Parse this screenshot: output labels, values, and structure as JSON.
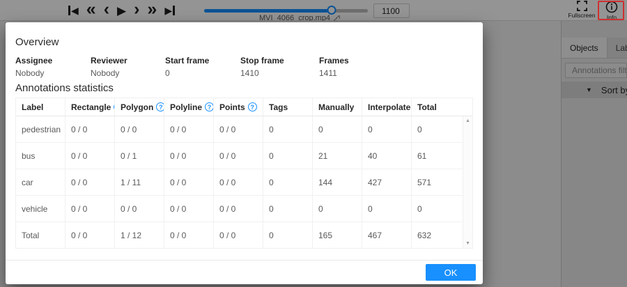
{
  "topbar": {
    "filename": "MVI_4066_crop.mp4",
    "frame_value": "1100",
    "slider_percent": 78,
    "fullscreen_label": "Fullscreen",
    "info_label": "Info"
  },
  "sidebar": {
    "tabs": [
      {
        "label": "Objects",
        "active": true
      },
      {
        "label": "Labels",
        "active": false
      }
    ],
    "filter_placeholder": "Annotations filter",
    "sort_label": "Sort by"
  },
  "modal": {
    "title": "Overview",
    "meta": [
      {
        "label": "Assignee",
        "value": "Nobody"
      },
      {
        "label": "Reviewer",
        "value": "Nobody"
      },
      {
        "label": "Start frame",
        "value": "0"
      },
      {
        "label": "Stop frame",
        "value": "1410"
      },
      {
        "label": "Frames",
        "value": "1411"
      }
    ],
    "stats_title": "Annotations statistics",
    "table": {
      "columns": [
        {
          "label": "Label",
          "help": false
        },
        {
          "label": "Rectangle",
          "help": true
        },
        {
          "label": "Polygon",
          "help": true
        },
        {
          "label": "Polyline",
          "help": true
        },
        {
          "label": "Points",
          "help": true
        },
        {
          "label": "Tags",
          "help": false
        },
        {
          "label": "Manually",
          "help": false
        },
        {
          "label": "Interpolated",
          "help": false
        },
        {
          "label": "Total",
          "help": false
        }
      ],
      "rows": [
        {
          "label": "pedestrian",
          "cells": [
            "0 / 0",
            "0 / 0",
            "0 / 0",
            "0 / 0",
            "0",
            "0",
            "0",
            "0"
          ]
        },
        {
          "label": "bus",
          "cells": [
            "0 / 0",
            "0 / 1",
            "0 / 0",
            "0 / 0",
            "0",
            "21",
            "40",
            "61"
          ]
        },
        {
          "label": "car",
          "cells": [
            "0 / 0",
            "1 / 11",
            "0 / 0",
            "0 / 0",
            "0",
            "144",
            "427",
            "571"
          ]
        },
        {
          "label": "vehicle",
          "cells": [
            "0 / 0",
            "0 / 0",
            "0 / 0",
            "0 / 0",
            "0",
            "0",
            "0",
            "0"
          ]
        },
        {
          "label": "Total",
          "cells": [
            "0 / 0",
            "1 / 12",
            "0 / 0",
            "0 / 0",
            "0",
            "165",
            "467",
            "632"
          ]
        }
      ]
    },
    "ok_label": "OK"
  },
  "icons": {
    "tri_left": "◀",
    "tri_right": "▶",
    "chevrons_left": "«",
    "chevron_left": "‹",
    "play": "▶",
    "chevron_right": "›",
    "chevrons_right": "»",
    "caret_down": "▼",
    "scroll_up": "▲",
    "scroll_down": "▼",
    "help": "?"
  },
  "colors": {
    "accent": "#1890ff",
    "highlight_red": "#d03030"
  }
}
